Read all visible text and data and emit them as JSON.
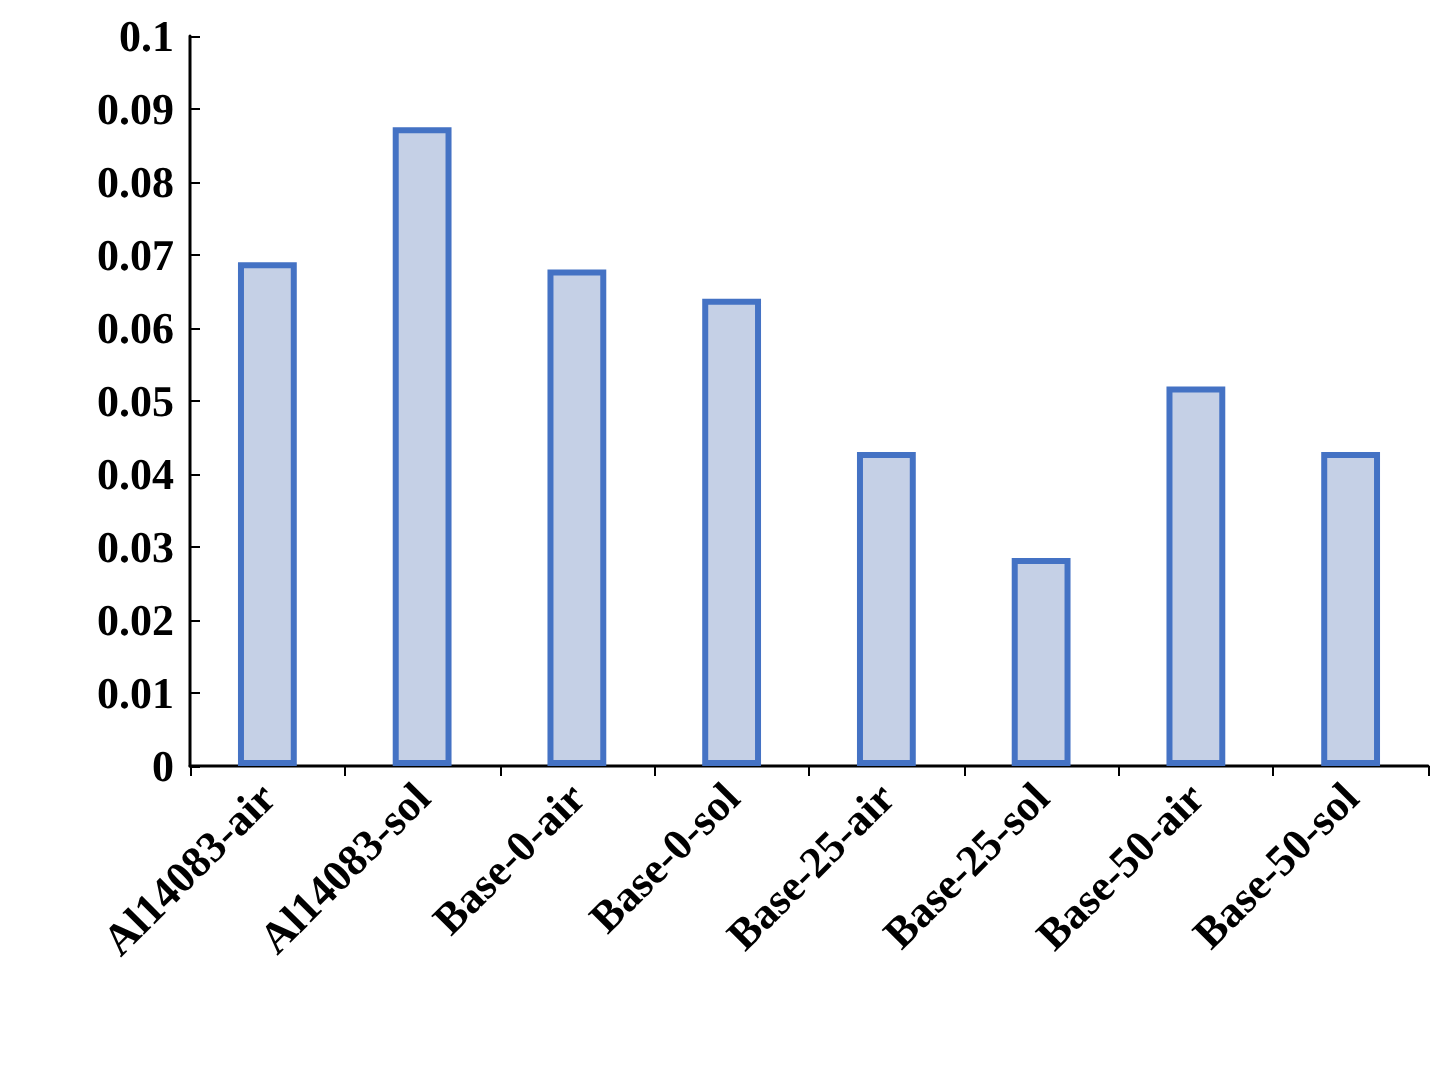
{
  "chart_data": {
    "type": "bar",
    "categories": [
      "Al14083-air",
      "Al14083-sol",
      "Base-0-air",
      "Base-0-sol",
      "Base-25-air",
      "Base-25-sol",
      "Base-50-air",
      "Base-50-sol"
    ],
    "values": [
      0.069,
      0.0875,
      0.068,
      0.064,
      0.043,
      0.0285,
      0.052,
      0.043
    ],
    "color": "#4472c4",
    "ylim": [
      0,
      0.1
    ],
    "yticks": [
      0,
      0.01,
      0.02,
      0.03,
      0.04,
      0.05,
      0.06,
      0.07,
      0.08,
      0.09,
      0.1
    ],
    "grid": false
  }
}
